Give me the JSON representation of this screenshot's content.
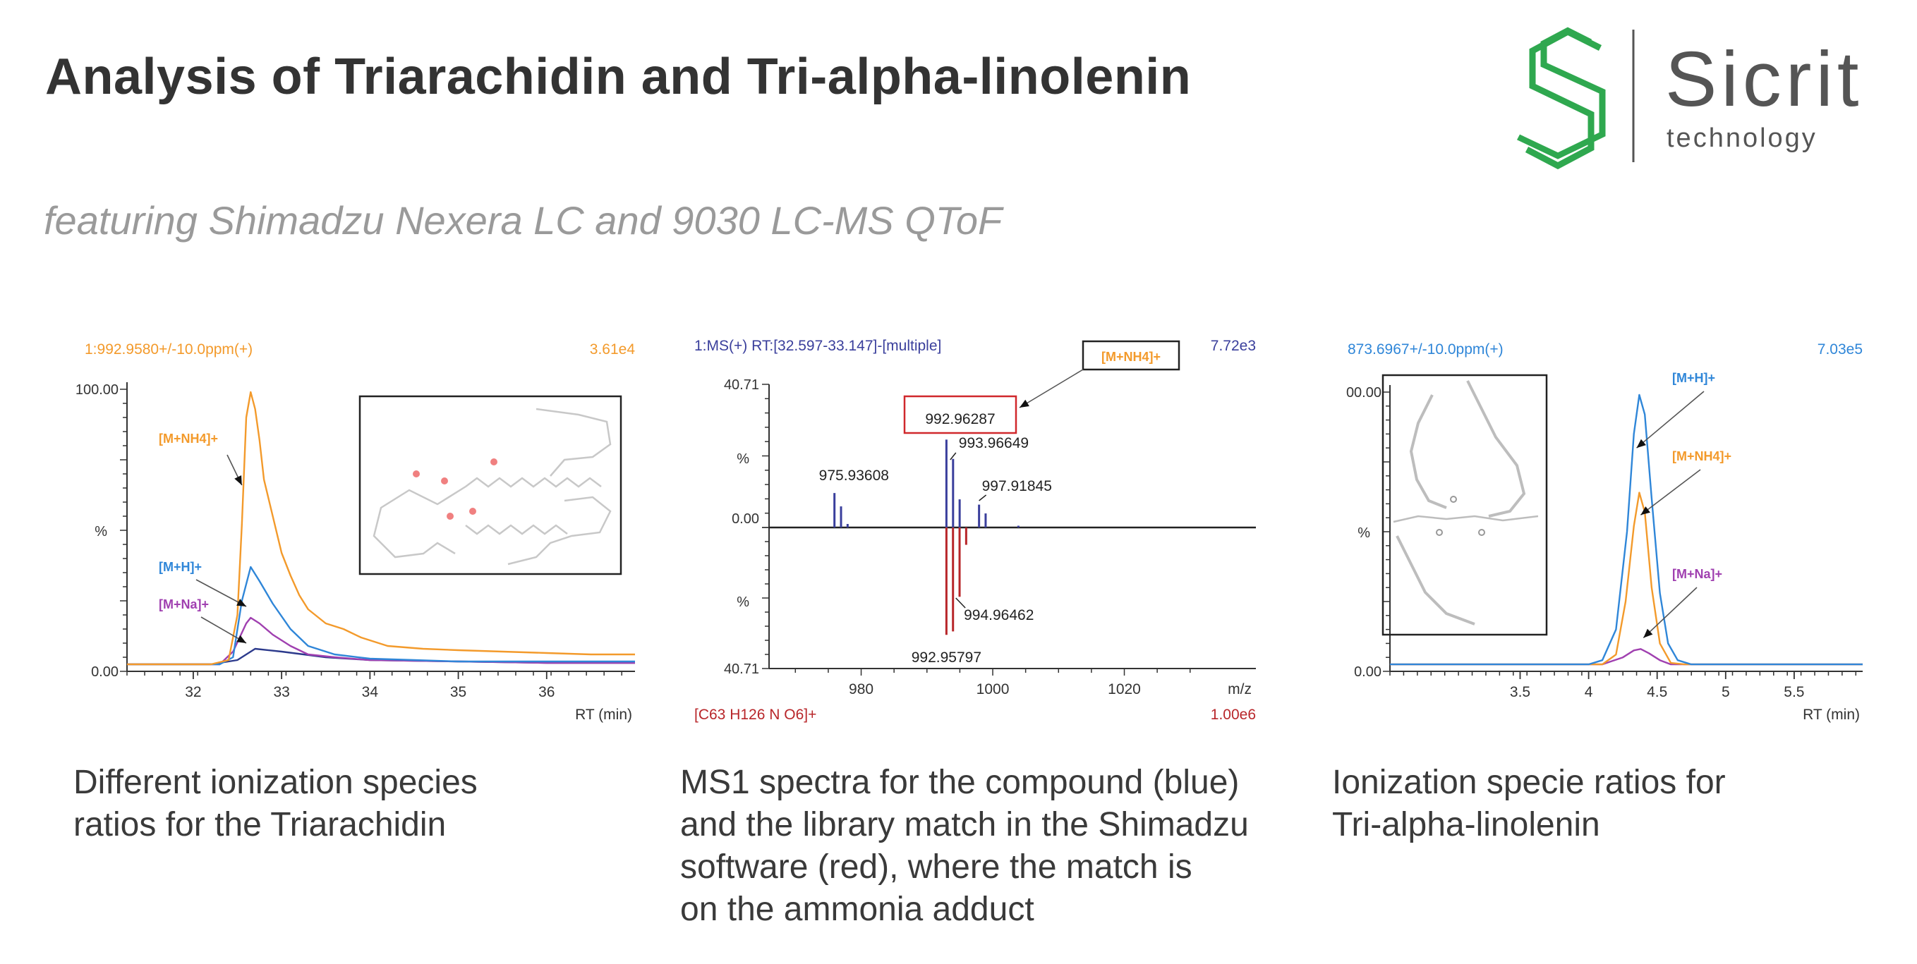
{
  "header": {
    "title": "Analysis of Triarachidin and Tri-alpha-linolenin",
    "subtitle": "featuring Shimadzu Nexera LC and 9030 LC-MS QToF"
  },
  "logo": {
    "name": "Sicrit",
    "tagline": "technology",
    "icon": "sicrit-s-logo-icon",
    "color": "#2fa84f"
  },
  "captions": [
    {
      "lines": [
        "Different ionization species",
        "ratios for the Triarachidin"
      ]
    },
    {
      "lines": [
        "MS1 spectra for the compound (blue)",
        "and the library match in the Shimadzu",
        "software (red), where the match is",
        "on the ammonia adduct"
      ]
    },
    {
      "lines": [
        "Ionization specie ratios for",
        "Tri-alpha-linolenin"
      ]
    }
  ],
  "chart_data": [
    {
      "type": "line",
      "header_left": "1:992.9580+/-10.0ppm(+)",
      "header_right": "3.61e4",
      "xlabel": "RT (min)",
      "ylabel": "%",
      "y_top_label": "100.00",
      "y_bottom_label": "0.00",
      "xlim": [
        31.25,
        37.0
      ],
      "ylim": [
        0,
        100
      ],
      "x_ticks": [
        32,
        33,
        34,
        35,
        36
      ],
      "series": [
        {
          "name": "[M+NH4]+",
          "color": "#f39a2b",
          "points": [
            [
              31.25,
              2.5
            ],
            [
              32.2,
              2.5
            ],
            [
              32.4,
              4
            ],
            [
              32.5,
              20
            ],
            [
              32.55,
              52
            ],
            [
              32.6,
              90
            ],
            [
              32.65,
              99
            ],
            [
              32.7,
              93
            ],
            [
              32.75,
              82
            ],
            [
              32.8,
              68
            ],
            [
              32.9,
              55
            ],
            [
              33.0,
              42
            ],
            [
              33.1,
              34
            ],
            [
              33.2,
              27
            ],
            [
              33.3,
              22
            ],
            [
              33.5,
              17
            ],
            [
              33.7,
              15
            ],
            [
              33.9,
              12
            ],
            [
              34.2,
              9
            ],
            [
              34.6,
              8
            ],
            [
              35.0,
              7.5
            ],
            [
              35.5,
              7
            ],
            [
              36.0,
              6.5
            ],
            [
              36.5,
              6
            ],
            [
              37.0,
              6
            ]
          ]
        },
        {
          "name": "[M+H]+",
          "color": "#2f86d8",
          "points": [
            [
              31.25,
              2.5
            ],
            [
              32.3,
              2.5
            ],
            [
              32.45,
              5
            ],
            [
              32.55,
              25
            ],
            [
              32.65,
              37
            ],
            [
              32.75,
              32
            ],
            [
              32.9,
              24
            ],
            [
              33.1,
              15
            ],
            [
              33.3,
              9
            ],
            [
              33.6,
              6
            ],
            [
              34.0,
              4.5
            ],
            [
              34.5,
              4
            ],
            [
              35.0,
              3.5
            ],
            [
              36.0,
              3.5
            ],
            [
              37.0,
              3.5
            ]
          ]
        },
        {
          "name": "[M+Na]+",
          "color": "#a040b0",
          "points": [
            [
              31.25,
              2.5
            ],
            [
              32.3,
              2.5
            ],
            [
              32.45,
              7
            ],
            [
              32.6,
              17
            ],
            [
              32.65,
              19
            ],
            [
              32.75,
              17
            ],
            [
              32.9,
              13
            ],
            [
              33.1,
              9
            ],
            [
              33.3,
              6
            ],
            [
              33.6,
              5
            ],
            [
              34.0,
              4
            ],
            [
              35.0,
              3.5
            ],
            [
              36.0,
              3
            ],
            [
              37.0,
              3
            ]
          ]
        },
        {
          "name": "",
          "color": "#2c3a8c",
          "points": [
            [
              31.25,
              2.5
            ],
            [
              32.2,
              2.5
            ],
            [
              32.5,
              4
            ],
            [
              32.7,
              8
            ],
            [
              33.0,
              7
            ],
            [
              33.5,
              5
            ],
            [
              34.0,
              4
            ],
            [
              35.0,
              3.5
            ],
            [
              36.0,
              3
            ],
            [
              37.0,
              3
            ]
          ]
        }
      ],
      "annotations": [
        "[M+NH4]+",
        "[M+H]+",
        "[M+Na]+"
      ]
    },
    {
      "type": "bar",
      "header_left": "1:MS(+) RT:[32.597-33.147]-[multiple]",
      "header_right": "7.72e3",
      "footer_left": "[C63 H126 N O6]+",
      "footer_right": "1.00e6",
      "xlabel": "m/z",
      "ylabel": "%",
      "y_top_label": "40.71",
      "y_mid_label": "0.00",
      "y_bottom_label": "40.71",
      "xlim": [
        966.0,
        1040.0
      ],
      "ylim": [
        -40.71,
        40.71
      ],
      "x_ticks": [
        980,
        1000,
        1020
      ],
      "series": [
        {
          "name": "compound",
          "color": "#3a3f9c",
          "peaks": [
            [
              975.94,
              9.8
            ],
            [
              976.94,
              6.0
            ],
            [
              977.94,
              1.0
            ],
            [
              992.96,
              25.0
            ],
            [
              993.97,
              19.5
            ],
            [
              994.97,
              8.0
            ],
            [
              997.92,
              6.5
            ],
            [
              998.92,
              4.0
            ],
            [
              1003.9,
              0.5
            ]
          ]
        },
        {
          "name": "library",
          "color": "#b8262a",
          "peaks": [
            [
              992.96,
              -31.0
            ],
            [
              993.96,
              -30.0
            ],
            [
              994.96,
              -20.0
            ],
            [
              995.96,
              -5.0
            ]
          ]
        }
      ],
      "peak_labels": [
        "975.93608",
        "992.96287",
        "993.96649",
        "997.91845",
        "994.96462",
        "992.95797"
      ],
      "annotation": "[M+NH4]+"
    },
    {
      "type": "line",
      "header_left": "873.6967+/-10.0ppm(+)",
      "header_right": "7.03e5",
      "xlabel": "RT (min)",
      "ylabel": "%",
      "y_top_label": "00.00",
      "y_bottom_label": "0.00",
      "xlim": [
        2.55,
        6.0
      ],
      "ylim": [
        0,
        100
      ],
      "x_ticks": [
        3.5,
        4.0,
        4.5,
        5.0,
        5.5
      ],
      "series": [
        {
          "name": "[M+H]+",
          "color": "#2f86d8",
          "points": [
            [
              2.55,
              2.5
            ],
            [
              4.0,
              2.5
            ],
            [
              4.1,
              4
            ],
            [
              4.2,
              15
            ],
            [
              4.28,
              50
            ],
            [
              4.33,
              85
            ],
            [
              4.37,
              99
            ],
            [
              4.41,
              92
            ],
            [
              4.46,
              62
            ],
            [
              4.52,
              28
            ],
            [
              4.58,
              10
            ],
            [
              4.65,
              4
            ],
            [
              4.75,
              2.5
            ],
            [
              6.0,
              2.5
            ]
          ]
        },
        {
          "name": "[M+NH4]+",
          "color": "#f39a2b",
          "points": [
            [
              2.55,
              2.5
            ],
            [
              4.1,
              2.5
            ],
            [
              4.2,
              6
            ],
            [
              4.27,
              25
            ],
            [
              4.33,
              52
            ],
            [
              4.37,
              64
            ],
            [
              4.41,
              57
            ],
            [
              4.46,
              30
            ],
            [
              4.52,
              10
            ],
            [
              4.6,
              3
            ],
            [
              4.7,
              2.5
            ],
            [
              6.0,
              2.5
            ]
          ]
        },
        {
          "name": "[M+Na]+",
          "color": "#a040b0",
          "points": [
            [
              2.55,
              2.5
            ],
            [
              4.1,
              2.5
            ],
            [
              4.25,
              5
            ],
            [
              4.33,
              7.5
            ],
            [
              4.38,
              8
            ],
            [
              4.44,
              6.5
            ],
            [
              4.52,
              4
            ],
            [
              4.6,
              2.5
            ],
            [
              6.0,
              2.5
            ]
          ]
        }
      ],
      "annotations": [
        "[M+H]+",
        "[M+NH4]+",
        "[M+Na]+"
      ]
    }
  ]
}
